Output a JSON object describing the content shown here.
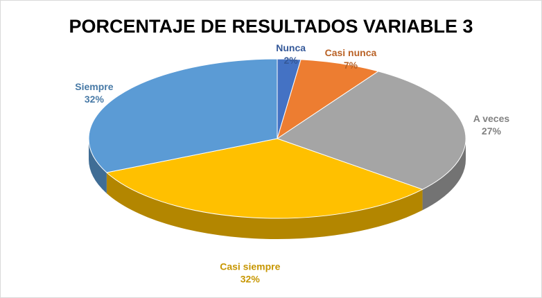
{
  "chart_data": {
    "type": "pie3d",
    "title": "PORCENTAJE DE RESULTADOS VARIABLE 3",
    "categories": [
      "Nunca",
      "Casi nunca",
      "A veces",
      "Casi siempre",
      "Siempre"
    ],
    "values": [
      2,
      7,
      27,
      32,
      32
    ],
    "value_labels": [
      "2%",
      "7%",
      "27%",
      "32%",
      "32%"
    ],
    "colors": [
      "#4472c4",
      "#ed7d31",
      "#a5a5a5",
      "#ffc000",
      "#5b9bd5"
    ]
  }
}
